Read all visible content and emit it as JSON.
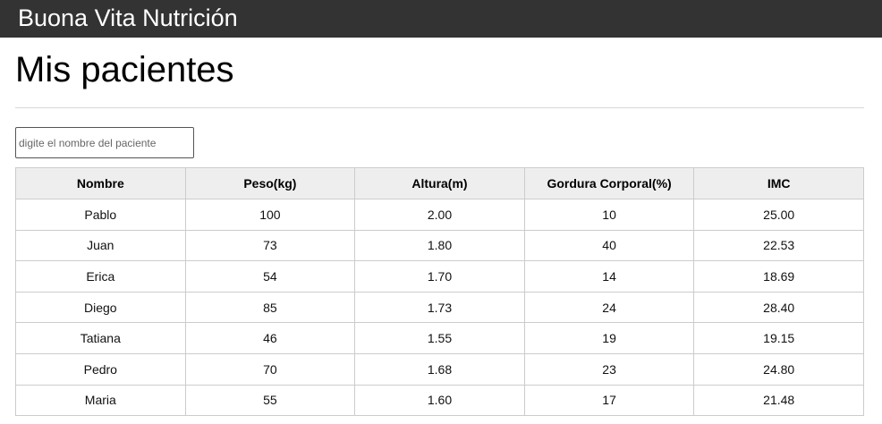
{
  "header": {
    "brand": "Buona Vita Nutrición"
  },
  "main": {
    "title": "Mis pacientes",
    "search": {
      "placeholder": "digite el nombre del paciente",
      "value": ""
    },
    "table": {
      "columns": [
        "Nombre",
        "Peso(kg)",
        "Altura(m)",
        "Gordura Corporal(%)",
        "IMC"
      ],
      "rows": [
        [
          "Pablo",
          "100",
          "2.00",
          "10",
          "25.00"
        ],
        [
          "Juan",
          "73",
          "1.80",
          "40",
          "22.53"
        ],
        [
          "Erica",
          "54",
          "1.70",
          "14",
          "18.69"
        ],
        [
          "Diego",
          "85",
          "1.73",
          "24",
          "28.40"
        ],
        [
          "Tatiana",
          "46",
          "1.55",
          "19",
          "19.15"
        ],
        [
          "Pedro",
          "70",
          "1.68",
          "23",
          "24.80"
        ],
        [
          "Maria",
          "55",
          "1.60",
          "17",
          "21.48"
        ]
      ]
    }
  }
}
